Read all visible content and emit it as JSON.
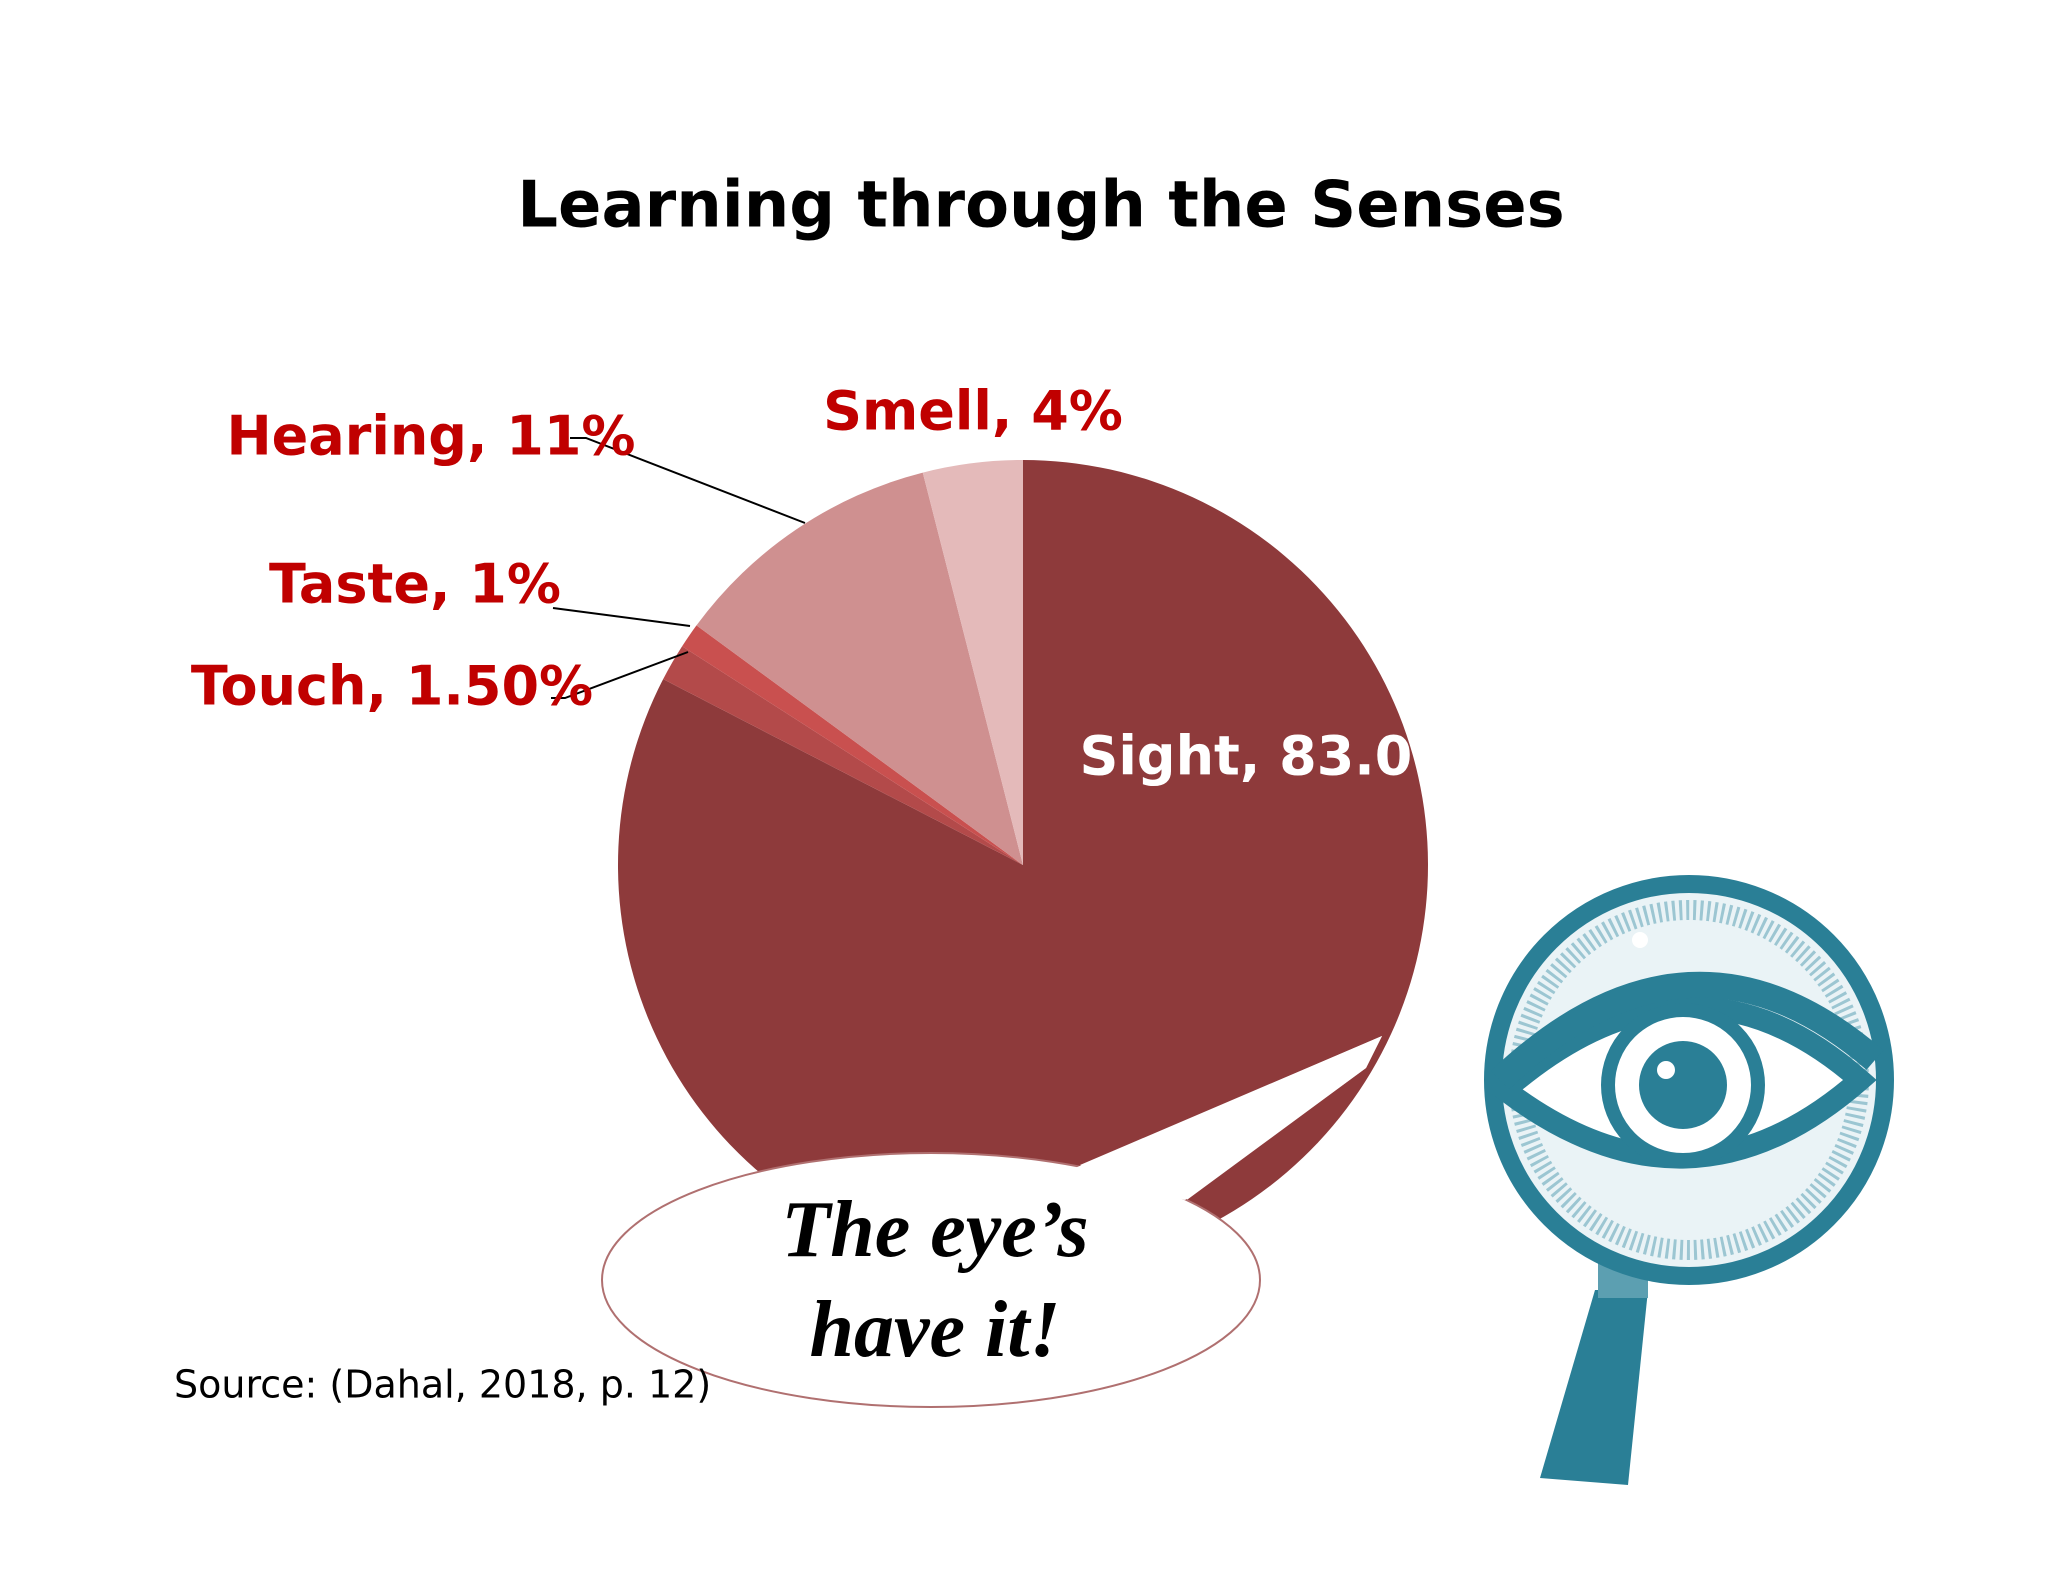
{
  "chart_data": {
    "type": "pie",
    "title": "Learning through the Senses",
    "categories": [
      "Sight",
      "Touch",
      "Taste",
      "Hearing",
      "Smell"
    ],
    "values": [
      83.0,
      1.5,
      1,
      11,
      4
    ],
    "value_labels": [
      "Sight, 83.0%",
      "Touch, 1.50%",
      "Taste, 1%",
      "Hearing, 11%",
      "Smell, 4%"
    ],
    "colors": [
      "#8e3a3b",
      "#b34a4a",
      "#c9504f",
      "#cf9090",
      "#e4baba"
    ],
    "annotation": "The eye’s have it!",
    "source": "Source:  (Dahal, 2018, p. 12)"
  }
}
